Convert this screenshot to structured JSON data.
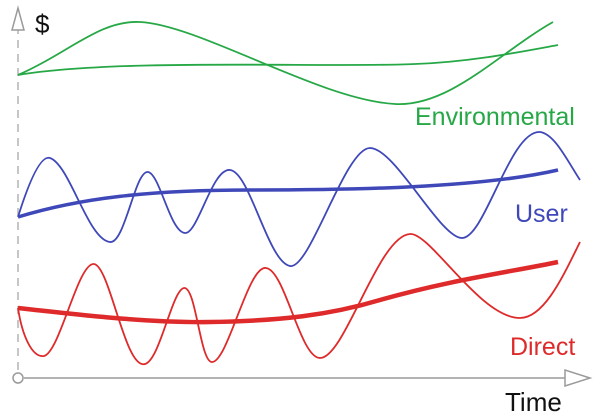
{
  "axes": {
    "y_label": "$",
    "x_label": "Time"
  },
  "series": [
    {
      "label": "Environmental",
      "color": "#27a846"
    },
    {
      "label": "User",
      "color": "#3f48b8"
    },
    {
      "label": "Direct",
      "color": "#de2a2a"
    }
  ]
}
